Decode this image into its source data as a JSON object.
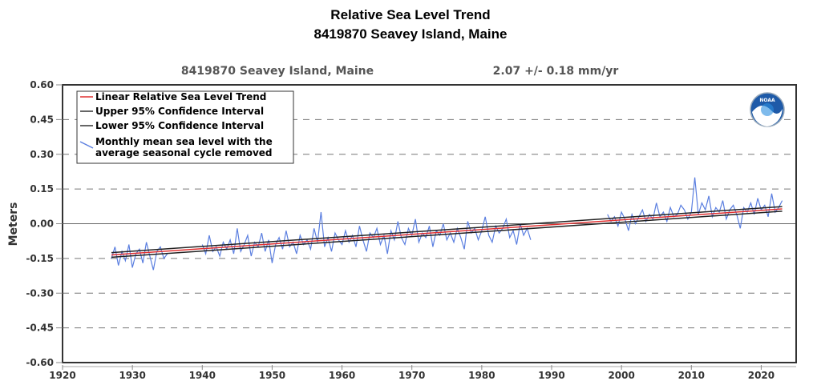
{
  "chart_data": {
    "type": "line",
    "title": "Relative Sea Level Trend",
    "subtitle": "8419870 Seavey Island, Maine",
    "plot_header_station": "8419870 Seavey Island, Maine",
    "plot_header_rate": "2.07 +/-  0.18 mm/yr",
    "ylabel": "Meters",
    "xlabel": "",
    "xlim": [
      1920,
      2025
    ],
    "ylim": [
      -0.6,
      0.6
    ],
    "xticks": [
      1920,
      1930,
      1940,
      1950,
      1960,
      1970,
      1980,
      1990,
      2000,
      2010,
      2020
    ],
    "yticks": [
      0.6,
      0.45,
      0.3,
      0.15,
      0.0,
      -0.15,
      -0.3,
      -0.45,
      -0.6
    ],
    "ytick_labels": [
      "0.60",
      "0.45",
      "0.30",
      "0.15",
      "0.00",
      "-0.15",
      "-0.30",
      "-0.45",
      "-0.60"
    ],
    "grid": "horizontal dashed",
    "legend_placement": "top-left",
    "logo": "NOAA",
    "legend": [
      {
        "label": "Linear Relative Sea Level Trend",
        "color": "#e03030"
      },
      {
        "label": "Upper 95% Confidence Interval",
        "color": "#333333"
      },
      {
        "label": "Lower 95% Confidence Interval",
        "color": "#333333"
      },
      {
        "label": "Monthly mean sea level with the average seasonal cycle removed",
        "label_lines": [
          "Monthly mean sea level with the",
          "average seasonal cycle removed"
        ],
        "color": "#5b7fe0"
      }
    ],
    "trend": {
      "rate_mm_per_yr": 2.07,
      "x": [
        1927,
        2023
      ],
      "y": [
        -0.135,
        0.064
      ],
      "upper": [
        -0.125,
        0.074
      ],
      "lower": [
        -0.145,
        0.054
      ]
    },
    "series_segments": [
      {
        "x_start": 1927.0,
        "step": 0.5,
        "values": [
          -0.15,
          -0.1,
          -0.18,
          -0.12,
          -0.16,
          -0.09,
          -0.19,
          -0.13,
          -0.11,
          -0.17,
          -0.08,
          -0.14,
          -0.2,
          -0.12,
          -0.1,
          -0.15,
          -0.13
        ]
      },
      {
        "x_start": 1940.0,
        "step": 0.5,
        "values": [
          -0.09,
          -0.13,
          -0.05,
          -0.12,
          -0.1,
          -0.14,
          -0.08,
          -0.11,
          -0.07,
          -0.13,
          -0.02,
          -0.12,
          -0.09,
          -0.05,
          -0.14,
          -0.08,
          -0.1,
          -0.04,
          -0.12,
          -0.07,
          -0.17,
          -0.09,
          -0.06,
          -0.11,
          -0.03,
          -0.1,
          -0.08,
          -0.13,
          -0.05,
          -0.09,
          -0.07,
          -0.11,
          -0.02,
          -0.08,
          0.05,
          -0.1,
          -0.06,
          -0.12,
          -0.04,
          -0.07,
          -0.09,
          -0.03,
          -0.08,
          -0.05,
          -0.1,
          -0.01,
          -0.07,
          -0.12,
          -0.04,
          -0.06,
          -0.02,
          -0.09,
          -0.05,
          -0.13,
          -0.03,
          -0.07,
          0.01,
          -0.06,
          -0.09,
          -0.02,
          -0.05,
          0.02,
          -0.08,
          -0.04,
          -0.06,
          -0.01,
          -0.1,
          -0.03,
          -0.05,
          0.0,
          -0.07,
          -0.04,
          -0.08,
          -0.02,
          -0.06,
          -0.11,
          0.01,
          -0.04,
          -0.02,
          -0.07,
          -0.03,
          0.03,
          -0.05,
          -0.08,
          -0.01,
          -0.04,
          -0.02,
          0.02,
          -0.06,
          -0.03,
          -0.09,
          0.0,
          -0.05,
          -0.02,
          -0.07
        ]
      },
      {
        "x_start": 1998.0,
        "step": 0.5,
        "values": [
          0.04,
          0.01,
          0.03,
          -0.01,
          0.05,
          0.02,
          -0.03,
          0.04,
          0.0,
          0.03,
          0.06,
          0.01,
          0.04,
          0.02,
          0.09,
          0.03,
          0.05,
          0.01,
          0.07,
          0.03,
          0.04,
          0.08,
          0.06,
          0.02,
          0.05,
          0.2,
          0.04,
          0.09,
          0.06,
          0.12,
          0.03,
          0.07,
          0.05,
          0.1,
          0.02,
          0.06,
          0.08,
          0.04,
          -0.02,
          0.07,
          0.05,
          0.09,
          0.04,
          0.11,
          0.06,
          0.08,
          0.03,
          0.13,
          0.05,
          0.07,
          0.1
        ]
      }
    ]
  }
}
